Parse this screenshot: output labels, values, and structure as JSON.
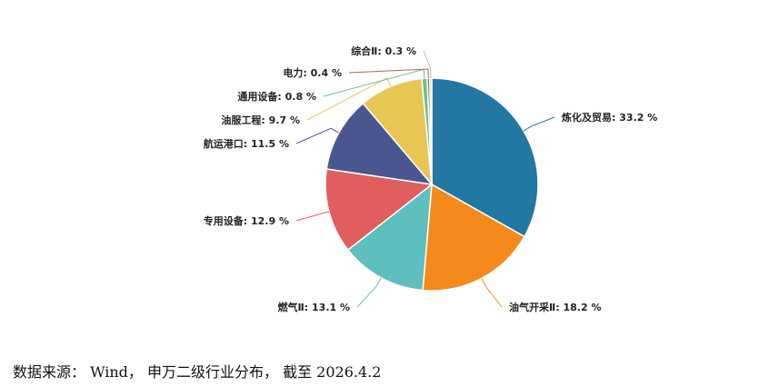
{
  "chart_data": {
    "type": "pie",
    "slices": [
      {
        "name": "炼化及贸易",
        "value": 33.2,
        "label": "炼化及贸易: 33.2 %",
        "color": "#2277a3"
      },
      {
        "name": "油气开采Ⅱ",
        "value": 18.2,
        "label": "油气开采Ⅱ: 18.2 %",
        "color": "#f58a1c"
      },
      {
        "name": "燃气Ⅱ",
        "value": 13.1,
        "label": "燃气Ⅱ: 13.1 %",
        "color": "#5fbfbe"
      },
      {
        "name": "专用设备",
        "value": 12.9,
        "label": "专用设备: 12.9 %",
        "color": "#e05e5e"
      },
      {
        "name": "航运港口",
        "value": 11.5,
        "label": "航运港口: 11.5 %",
        "color": "#4a5690"
      },
      {
        "name": "油服工程",
        "value": 9.7,
        "label": "油服工程: 9.7 %",
        "color": "#e8c654"
      },
      {
        "name": "通用设备",
        "value": 0.8,
        "label": "通用设备: 0.8 %",
        "color": "#6cbf8a"
      },
      {
        "name": "电力",
        "value": 0.4,
        "label": "电力: 0.4 %",
        "color": "#a66a52"
      },
      {
        "name": "综合Ⅱ",
        "value": 0.3,
        "label": "综合Ⅱ: 0.3 %",
        "color": "#b8b8b8"
      }
    ]
  },
  "source_note": "数据来源： Wind， 申万二级行业分布， 截至 2026.4.2"
}
